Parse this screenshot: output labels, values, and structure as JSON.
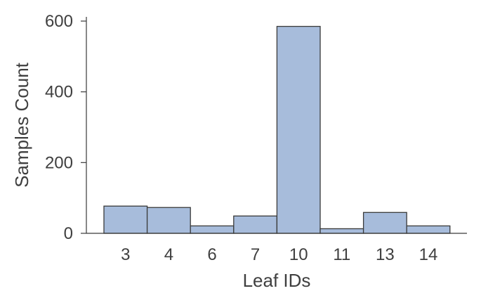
{
  "chart_data": {
    "type": "bar",
    "categories": [
      "3",
      "4",
      "6",
      "7",
      "10",
      "11",
      "13",
      "14"
    ],
    "values": [
      77,
      73,
      21,
      49,
      585,
      13,
      59,
      21
    ],
    "title": "",
    "xlabel": "Leaf IDs",
    "ylabel": "Samples Count",
    "ylim": [
      0,
      600
    ],
    "yticks": [
      "0",
      "200",
      "400",
      "600"
    ],
    "grid": false,
    "colors": {
      "bar_fill": "#a7bcdb",
      "bar_edge": "#3a3a3a",
      "axis": "#3a3a3a",
      "text": "#3f3f3f"
    }
  }
}
